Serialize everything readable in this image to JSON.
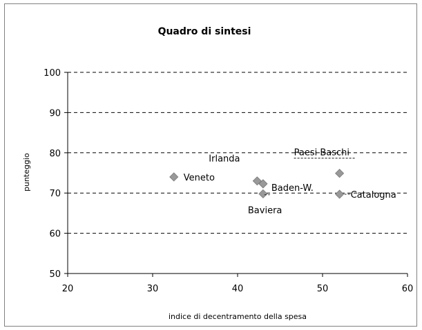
{
  "chart_data": {
    "type": "scatter",
    "title": "Quadro di sintesi",
    "xlabel": "indice di decentramento della spesa",
    "ylabel": "punteggio",
    "xlim": [
      20,
      60
    ],
    "ylim": [
      50,
      100
    ],
    "xticks": [
      20,
      30,
      40,
      50,
      60
    ],
    "yticks": [
      50,
      60,
      70,
      80,
      90,
      100
    ],
    "grid": "horizontal dashed",
    "legend": "none",
    "marker_color": "#999999",
    "points": [
      {
        "label": "Veneto",
        "x": 32.5,
        "y": 74
      },
      {
        "label": "Irlanda",
        "x": 42.3,
        "y": 73
      },
      {
        "label": "Irlanda",
        "x": 43.0,
        "y": 72.3,
        "show_label": false
      },
      {
        "label": "Baviera",
        "x": 43.0,
        "y": 69.8
      },
      {
        "label": "Baden-W.",
        "x": 43.0,
        "y": 72.3
      },
      {
        "label": "Paesi Baschi",
        "x": 52.0,
        "y": 74.9
      },
      {
        "label": "Catalogna",
        "x": 52.0,
        "y": 69.7
      }
    ]
  }
}
